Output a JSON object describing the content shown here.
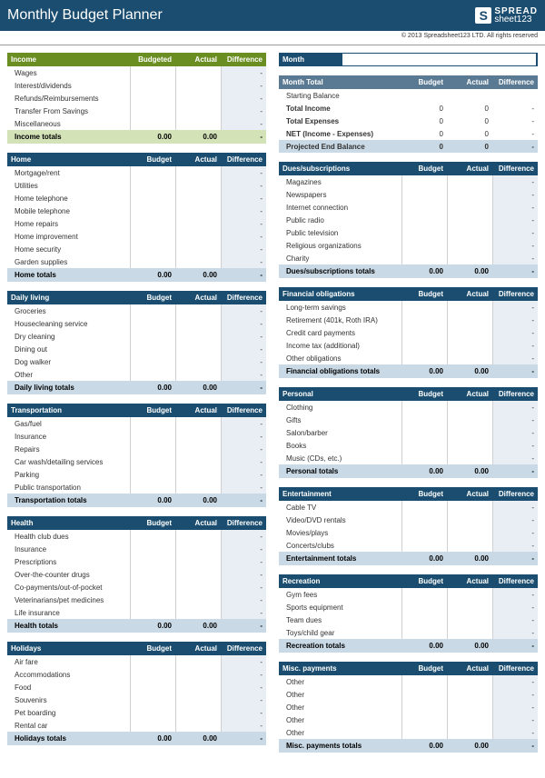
{
  "title": "Monthly Budget Planner",
  "logo": {
    "s": "S",
    "line1": "SPREAD",
    "line2": "sheet123"
  },
  "copyright": "© 2013 Spreadsheet123 LTD. All rights reserved",
  "cols": {
    "budget": "Budget",
    "budgeted": "Budgeted",
    "actual": "Actual",
    "diff": "Difference"
  },
  "zero": "0",
  "dash": "-",
  "zz": "0.00",
  "month": {
    "label": "Month",
    "totalHdr": "Month Total",
    "sb": "Starting Balance",
    "ti": "Total Income",
    "te": "Total Expenses",
    "net": "NET (Income - Expenses)",
    "proj": "Projected End Balance"
  },
  "left": [
    {
      "name": "Income",
      "green": true,
      "items": [
        "Wages",
        "Interest/dividends",
        "Refunds/Reimbursements",
        "Transfer From Savings",
        "Miscellaneous"
      ],
      "tot": "Income totals"
    },
    {
      "name": "Home",
      "items": [
        "Mortgage/rent",
        "Utilities",
        "Home telephone",
        "Mobile telephone",
        "Home repairs",
        "Home improvement",
        "Home security",
        "Garden supplies"
      ],
      "tot": "Home totals"
    },
    {
      "name": "Daily living",
      "items": [
        "Groceries",
        "Housecleaning service",
        "Dry cleaning",
        "Dining out",
        "Dog walker",
        "Other"
      ],
      "tot": "Daily living totals"
    },
    {
      "name": "Transportation",
      "items": [
        "Gas/fuel",
        "Insurance",
        "Repairs",
        "Car wash/detailing services",
        "Parking",
        "Public transportation"
      ],
      "tot": "Transportation totals"
    },
    {
      "name": "Health",
      "items": [
        "Health club dues",
        "Insurance",
        "Prescriptions",
        "Over-the-counter drugs",
        "Co-payments/out-of-pocket",
        "Veterinarians/pet medicines",
        "Life insurance"
      ],
      "tot": "Health totals"
    },
    {
      "name": "Holidays",
      "items": [
        "Air fare",
        "Accommodations",
        "Food",
        "Souvenirs",
        "Pet boarding",
        "Rental car"
      ],
      "tot": "Holidays totals"
    }
  ],
  "right": [
    {
      "name": "Dues/subscriptions",
      "items": [
        "Magazines",
        "Newspapers",
        "Internet connection",
        "Public radio",
        "Public television",
        "Religious organizations",
        "Charity"
      ],
      "tot": "Dues/subscriptions totals"
    },
    {
      "name": "Financial obligations",
      "items": [
        "Long-term savings",
        "Retirement (401k, Roth IRA)",
        "Credit card payments",
        "Income tax (additional)",
        "Other obligations"
      ],
      "tot": "Financial obligations totals"
    },
    {
      "name": "Personal",
      "items": [
        "Clothing",
        "Gifts",
        "Salon/barber",
        "Books",
        "Music (CDs, etc.)"
      ],
      "tot": "Personal totals"
    },
    {
      "name": "Entertainment",
      "items": [
        "Cable TV",
        "Video/DVD rentals",
        "Movies/plays",
        "Concerts/clubs"
      ],
      "tot": "Entertainment totals"
    },
    {
      "name": "Recreation",
      "items": [
        "Gym fees",
        "Sports equipment",
        "Team dues",
        "Toys/child gear"
      ],
      "tot": "Recreation totals"
    },
    {
      "name": "Misc. payments",
      "items": [
        "Other",
        "Other",
        "Other",
        "Other",
        "Other"
      ],
      "tot": "Misc. payments totals"
    }
  ]
}
